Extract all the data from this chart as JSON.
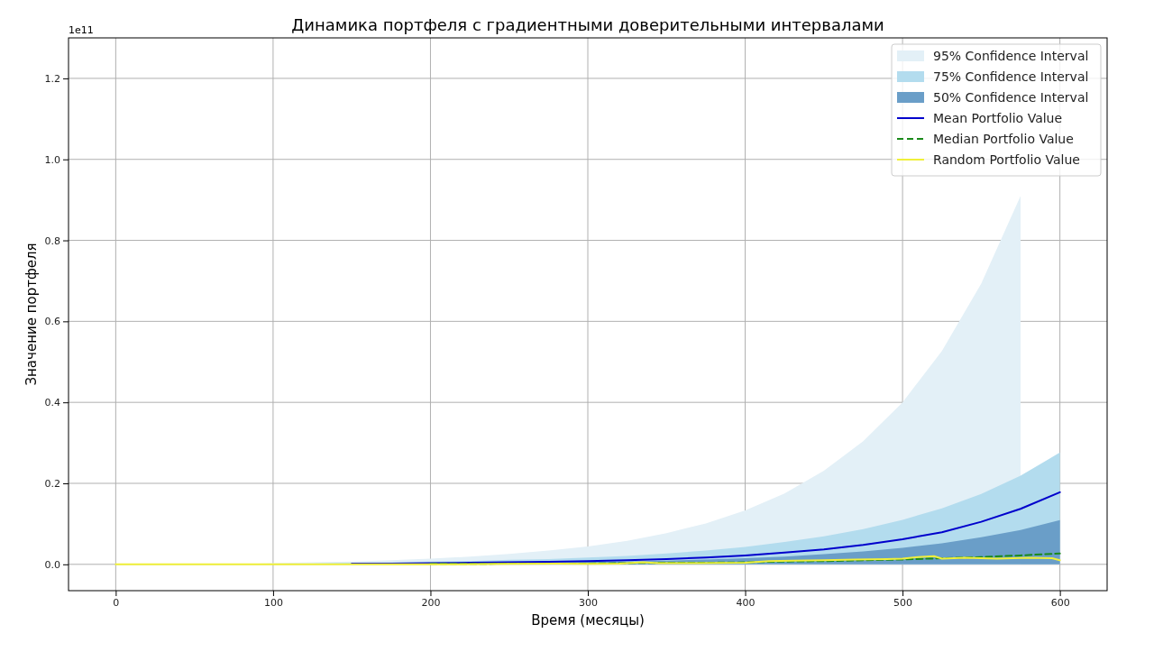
{
  "chart_data": {
    "type": "area",
    "title": "Динамика портфеля с градиентными доверительными интервалами",
    "xlabel": "Время (месяцы)",
    "ylabel": "Значение портфеля",
    "annotations": [
      "1e11"
    ],
    "x": [
      0,
      25,
      50,
      75,
      100,
      125,
      150,
      175,
      200,
      225,
      250,
      275,
      300,
      325,
      350,
      375,
      400,
      425,
      450,
      475,
      500,
      525,
      550,
      575,
      600
    ],
    "xlim": [
      -30,
      630
    ],
    "xticks": [
      0,
      100,
      200,
      300,
      400,
      500,
      600
    ],
    "ylim": [
      -0.065,
      1.3
    ],
    "yticks": [
      {
        "value": 0,
        "label": "0.0"
      },
      0.2,
      0.4,
      0.6,
      0.8,
      {
        "value": 1,
        "label": "1.0"
      },
      1.2
    ],
    "grid": true,
    "legend": "top right",
    "series": [
      {
        "name": "95% Confidence Interval",
        "color": "#e3f0f7",
        "values": [
          0,
          0,
          0,
          0,
          0.003,
          0.005,
          0.007,
          0.01,
          0.014,
          0.019,
          0.026,
          0.034,
          0.044,
          0.058,
          0.077,
          0.101,
          0.133,
          0.175,
          0.231,
          0.304,
          0.4,
          0.527,
          0.693,
          0.91,
          null
        ]
      },
      {
        "name": "75% Confidence Interval",
        "color": "#b3dcee",
        "values": [
          0,
          0,
          0,
          0,
          0.002,
          0.002,
          0.004,
          0.005,
          0.007,
          0.008,
          0.011,
          0.013,
          0.017,
          0.021,
          0.027,
          0.034,
          0.043,
          0.055,
          0.069,
          0.087,
          0.11,
          0.138,
          0.174,
          0.219,
          0.276
        ]
      },
      {
        "name": "50% Confidence Interval",
        "color": "#6a9ec8",
        "values": [
          0,
          0,
          0,
          0,
          0,
          0,
          0,
          0.002,
          0.002,
          0.003,
          0.003,
          0.004,
          0.006,
          0.007,
          0.009,
          0.012,
          0.015,
          0.019,
          0.025,
          0.032,
          0.041,
          0.052,
          0.067,
          0.085,
          0.109
        ]
      },
      {
        "name": "Mean Portfolio Value",
        "type": "line",
        "color": "#0000cc",
        "values": [
          null,
          null,
          null,
          null,
          null,
          null,
          0.002,
          0.002,
          0.003,
          0.004,
          0.005,
          0.006,
          0.008,
          0.01,
          0.013,
          0.017,
          0.022,
          0.029,
          0.037,
          0.048,
          0.062,
          0.079,
          0.105,
          0.137,
          0.178
        ]
      },
      {
        "name": "Median Portfolio Value",
        "type": "line",
        "color": "#1a8a1a",
        "line_style": "dashed",
        "values": [
          null,
          null,
          null,
          null,
          null,
          null,
          null,
          null,
          0.001,
          0.001,
          0.002,
          0.002,
          0.002,
          0.003,
          0.004,
          0.004,
          0.005,
          0.007,
          0.008,
          0.01,
          0.012,
          0.015,
          0.018,
          0.022,
          0.027
        ]
      },
      {
        "name": "Random Portfolio Value",
        "type": "line",
        "color": "#f0f03a",
        "x": [
          0,
          50,
          100,
          130,
          150,
          200,
          250,
          280,
          300,
          320,
          335,
          345,
          370,
          400,
          415,
          430,
          450,
          470,
          490,
          500,
          510,
          520,
          525,
          540,
          560,
          580,
          595,
          600
        ],
        "values": [
          0,
          0,
          0,
          0,
          0,
          0,
          0.001,
          0.002,
          0.001,
          0.002,
          0.005,
          0.003,
          0.003,
          0.004,
          0.008,
          0.009,
          0.01,
          0.012,
          0.013,
          0.014,
          0.018,
          0.02,
          0.014,
          0.016,
          0.014,
          0.016,
          0.015,
          0.01
        ]
      }
    ]
  }
}
